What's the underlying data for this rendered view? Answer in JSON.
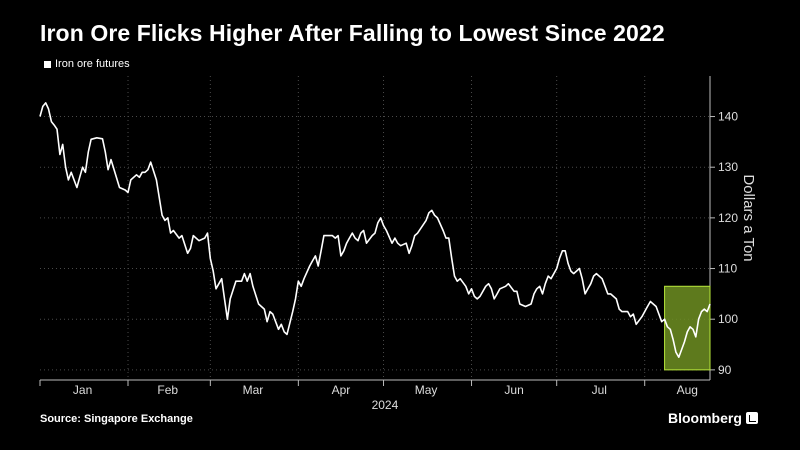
{
  "title": "Iron Ore Flicks Higher After Falling to Lowest Since 2022",
  "legend": {
    "label": "Iron ore futures",
    "icon": "square-icon"
  },
  "source": "Source: Singapore Exchange",
  "brand": {
    "label": "Bloomberg",
    "icon": "bloomberg-terminal-icon"
  },
  "chart_data": {
    "type": "line",
    "title": "Iron Ore Flicks Higher After Falling to Lowest Since 2022",
    "xlabel": "2024",
    "ylabel": "Dollars a Ton",
    "ylim": [
      88,
      148
    ],
    "yticks": [
      90,
      100,
      110,
      120,
      130,
      140
    ],
    "xlim": [
      1,
      237
    ],
    "month_ticks": [
      1,
      32,
      61,
      92,
      122,
      153,
      183,
      214
    ],
    "month_labels": [
      {
        "x": 16,
        "label": "Jan"
      },
      {
        "x": 46,
        "label": "Feb"
      },
      {
        "x": 76,
        "label": "Mar"
      },
      {
        "x": 107,
        "label": "Apr"
      },
      {
        "x": 137,
        "label": "May"
      },
      {
        "x": 168,
        "label": "Jun"
      },
      {
        "x": 198,
        "label": "Jul"
      },
      {
        "x": 229,
        "label": "Aug"
      }
    ],
    "grid": true,
    "legend_position": "top-left",
    "series": [
      {
        "name": "Iron ore futures",
        "color": "#ffffff",
        "x": [
          1,
          2,
          3,
          4,
          5,
          6,
          7,
          8,
          9,
          10,
          11,
          12,
          14,
          15,
          16,
          17,
          18,
          19,
          21,
          23,
          24,
          25,
          26,
          29,
          31,
          32,
          33,
          35,
          36,
          37,
          38,
          39,
          40,
          42,
          44,
          45,
          46,
          47,
          48,
          50,
          51,
          53,
          54,
          55,
          57,
          59,
          60,
          61,
          62,
          63,
          65,
          66,
          67,
          68,
          70,
          72,
          73,
          74,
          75,
          76,
          78,
          80,
          81,
          82,
          83,
          85,
          86,
          87,
          88,
          90,
          91,
          92,
          93,
          94,
          96,
          97,
          98,
          99,
          100,
          101,
          102,
          103,
          104,
          105,
          106,
          107,
          108,
          109,
          110,
          111,
          112,
          113,
          114,
          115,
          116,
          118,
          119,
          120,
          121,
          122,
          123,
          125,
          126,
          127,
          128,
          130,
          131,
          132,
          133,
          134,
          137,
          138,
          139,
          140,
          141,
          143,
          144,
          145,
          146,
          147,
          148,
          149,
          151,
          152,
          153,
          154,
          155,
          156,
          158,
          159,
          160,
          161,
          162,
          163,
          165,
          166,
          168,
          169,
          170,
          172,
          174,
          175,
          176,
          177,
          178,
          179,
          180,
          181,
          183,
          184,
          185,
          186,
          187,
          188,
          189,
          191,
          192,
          193,
          194,
          195,
          196,
          197,
          199,
          200,
          201,
          202,
          204,
          205,
          206,
          208,
          209,
          210,
          211,
          213,
          214,
          215,
          216,
          218,
          219,
          220,
          221,
          222,
          223,
          224,
          225,
          226,
          227,
          228,
          229,
          230,
          231,
          232,
          233,
          234,
          235,
          236,
          237
        ],
        "values": [
          140.0,
          142.0,
          142.7,
          141.5,
          139.0,
          138.3,
          137.5,
          132.5,
          134.5,
          130.0,
          127.5,
          129.0,
          126.0,
          128.0,
          130.0,
          129.0,
          133.0,
          135.5,
          135.8,
          135.6,
          133.0,
          129.5,
          131.5,
          126.0,
          125.5,
          125.0,
          127.5,
          128.5,
          128.0,
          129.0,
          129.0,
          129.5,
          131.0,
          127.5,
          120.5,
          119.5,
          120.0,
          117.0,
          117.5,
          116.0,
          116.5,
          113.0,
          114.0,
          116.5,
          115.5,
          116.0,
          117.0,
          112.0,
          109.5,
          106.0,
          108.0,
          104.0,
          100.0,
          104.0,
          107.5,
          107.5,
          109.0,
          107.5,
          109.0,
          106.5,
          103.0,
          102.0,
          99.5,
          101.5,
          101.0,
          98.0,
          99.0,
          97.5,
          97.0,
          101.5,
          104.0,
          107.5,
          106.5,
          108.0,
          110.5,
          111.5,
          112.5,
          110.5,
          113.5,
          116.5,
          116.5,
          116.5,
          116.5,
          116.0,
          116.5,
          112.5,
          113.5,
          115.0,
          116.0,
          117.0,
          116.0,
          115.5,
          117.0,
          117.5,
          115.0,
          116.5,
          117.0,
          119.0,
          120.0,
          118.5,
          117.5,
          115.0,
          116.0,
          115.0,
          114.5,
          115.0,
          113.0,
          114.5,
          116.5,
          117.0,
          119.5,
          121.0,
          121.5,
          120.5,
          120.0,
          117.5,
          116.0,
          116.0,
          112.0,
          108.5,
          107.5,
          108.0,
          106.5,
          105.0,
          106.0,
          104.5,
          104.0,
          104.5,
          106.5,
          107.0,
          106.0,
          104.0,
          105.0,
          106.0,
          106.5,
          107.0,
          105.5,
          105.5,
          103.0,
          102.5,
          103.0,
          105.0,
          106.0,
          106.5,
          105.0,
          107.0,
          108.5,
          108.0,
          110.0,
          112.0,
          113.5,
          113.5,
          111.0,
          109.5,
          109.0,
          110.0,
          108.0,
          105.0,
          106.0,
          107.0,
          108.5,
          109.0,
          108.0,
          106.5,
          105.0,
          105.0,
          104.0,
          102.0,
          101.5,
          101.5,
          100.5,
          101.0,
          99.0,
          100.5,
          101.5,
          102.5,
          103.5,
          102.5,
          101.0,
          99.5,
          100.0,
          98.5,
          98.0,
          96.0,
          93.5,
          92.5,
          94.0,
          95.5,
          97.5,
          98.5,
          98.0,
          96.5,
          100.0,
          101.5,
          102.0,
          101.5,
          103.0
        ]
      }
    ],
    "highlight": {
      "x": [
        221,
        237
      ],
      "y": [
        90,
        106.5
      ],
      "fill": "#6f8f22",
      "stroke": "#b8e83a"
    }
  }
}
